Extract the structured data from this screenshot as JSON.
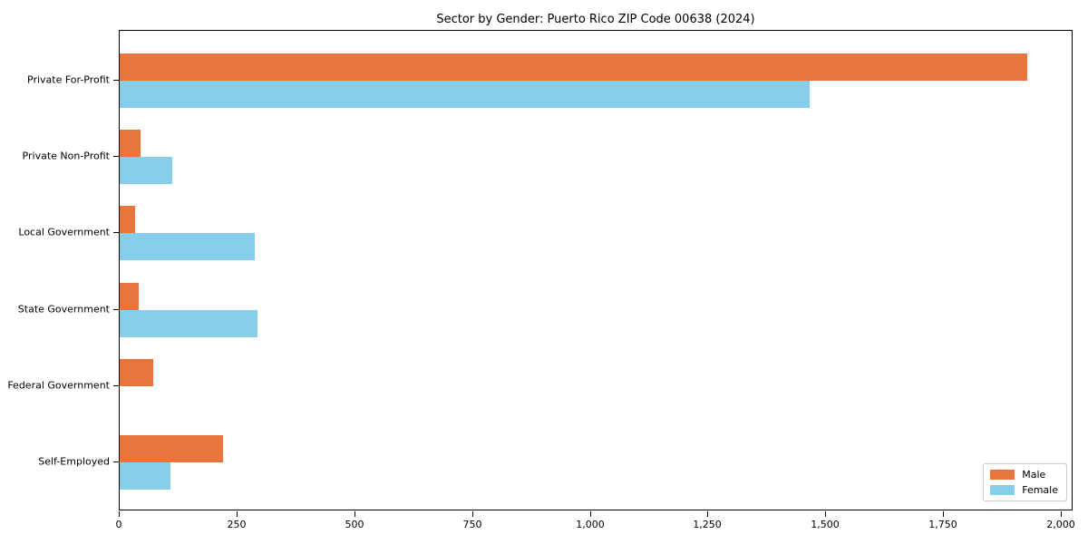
{
  "title": "Sector by Gender: Puerto Rico ZIP Code 00638 (2024)",
  "chart_data": {
    "type": "bar",
    "orientation": "horizontal",
    "title": "Sector by Gender: Puerto Rico ZIP Code 00638 (2024)",
    "categories": [
      "Private For-Profit",
      "Private Non-Profit",
      "Local Government",
      "State Government",
      "Federal Government",
      "Self-Employed"
    ],
    "series": [
      {
        "name": "Male",
        "color": "#e8763c",
        "values": [
          1927,
          44,
          33,
          40,
          71,
          219
        ]
      },
      {
        "name": "Female",
        "color": "#87ceeb",
        "values": [
          1465,
          112,
          287,
          292,
          0,
          108
        ]
      }
    ],
    "xlabel": "",
    "ylabel": "",
    "xlim": [
      0,
      2025
    ],
    "x_ticks": [
      0,
      250,
      500,
      750,
      1000,
      1250,
      1500,
      1750,
      2000
    ],
    "x_tick_labels": [
      "0",
      "250",
      "500",
      "750",
      "1,000",
      "1,250",
      "1,500",
      "1,750",
      "2,000"
    ],
    "grid": false,
    "legend_position": "lower right"
  },
  "legend": {
    "items": [
      {
        "label": "Male",
        "color": "#e8763c"
      },
      {
        "label": "Female",
        "color": "#87ceeb"
      }
    ]
  }
}
